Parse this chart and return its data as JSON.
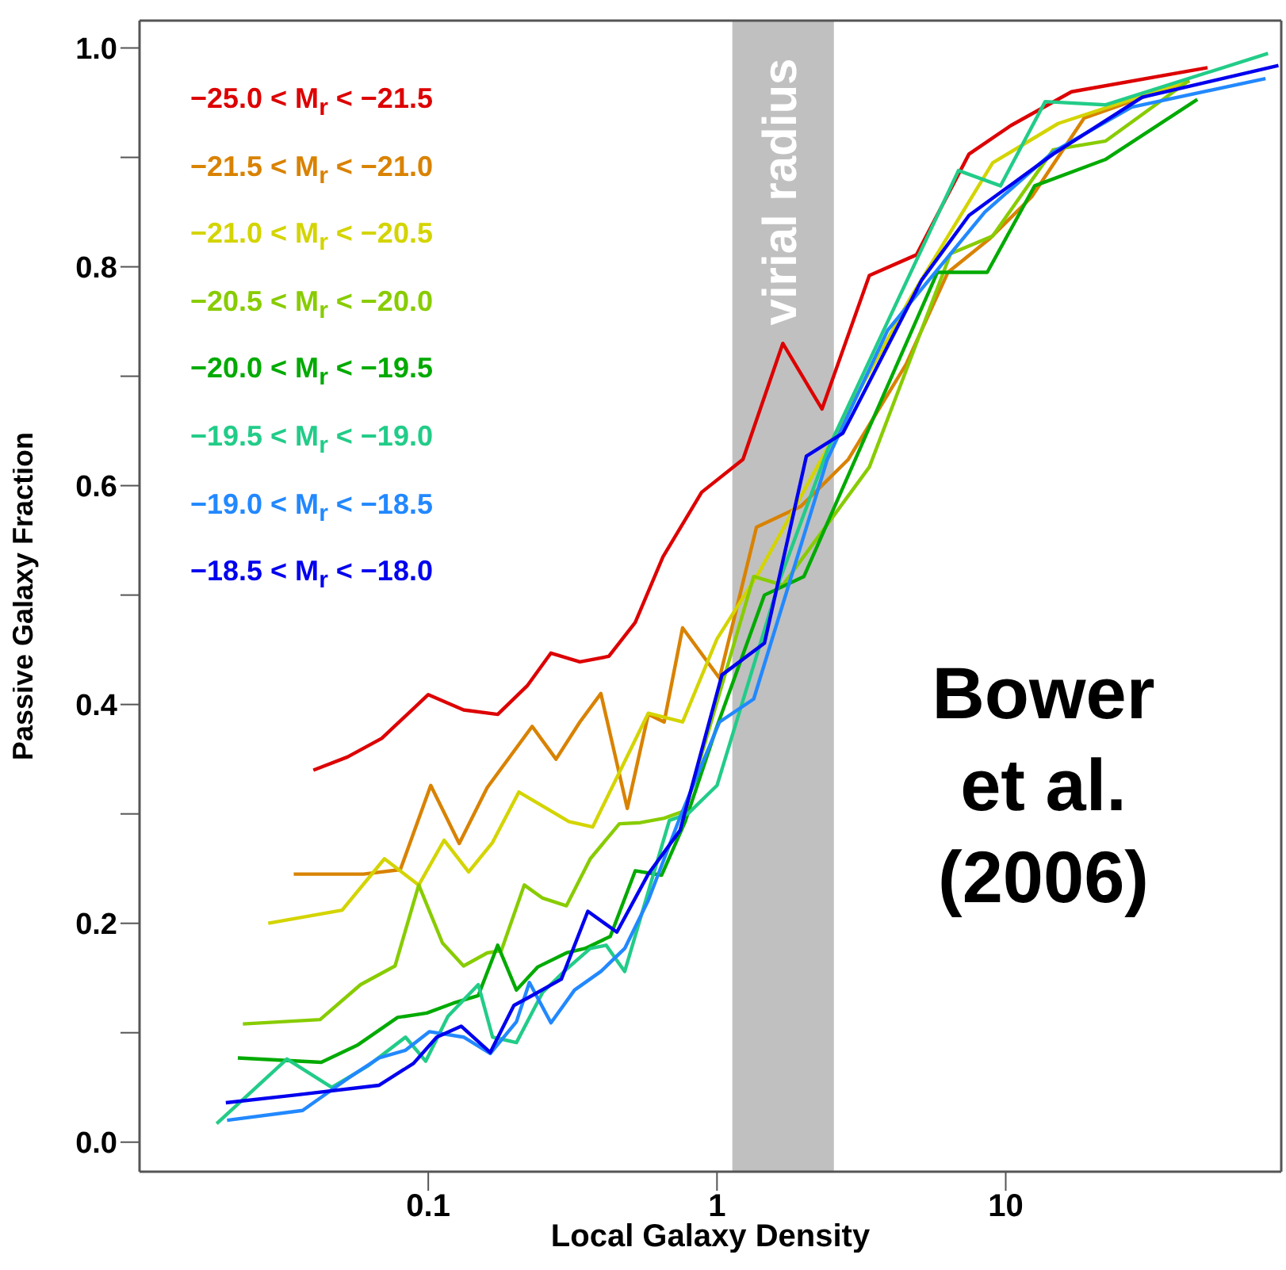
{
  "chart_data": {
    "type": "line",
    "xlabel": "Local Galaxy Density",
    "ylabel": "Passive Galaxy Fraction",
    "log": "x",
    "legend": "top left",
    "marker": "none",
    "line_style": "solid",
    "xlim": [
      0.01,
      90
    ],
    "xticks": [
      0.1,
      1,
      10
    ],
    "ylim": [
      -0.027,
      1.025
    ],
    "yticks": [
      {
        "value": 0,
        "label": "0.0"
      },
      {
        "value": 0.1,
        "label": null
      },
      {
        "value": 0.2,
        "label": "0.2"
      },
      {
        "value": 0.3,
        "label": null
      },
      {
        "value": 0.4,
        "label": "0.4"
      },
      {
        "value": 0.5,
        "label": null
      },
      {
        "value": 0.6,
        "label": "0.6"
      },
      {
        "value": 0.7,
        "label": null
      },
      {
        "value": 0.8,
        "label": "0.8"
      },
      {
        "value": 0.9,
        "label": null
      },
      {
        "value": 1,
        "label": "1.0"
      }
    ],
    "bands": [
      {
        "axis": "x",
        "from": 1.13,
        "to": 2.54,
        "label": "virial radius",
        "color": "#c0c0c0"
      }
    ],
    "annotations": [
      "Bower et al. (2006)"
    ],
    "series": [
      {
        "name": "−25.0 < M$_{r}$ < −21.5",
        "color": "#dd0000",
        "x": [
          0.04,
          0.0525,
          0.069,
          0.1,
          0.1325,
          0.174,
          0.22,
          0.266,
          0.335,
          0.422,
          0.521,
          0.65,
          0.885,
          1.23,
          1.69,
          2.31,
          3.37,
          4.91,
          7.46,
          10.4,
          16.9,
          50
        ],
        "values": [
          0.34,
          0.352,
          0.369,
          0.409,
          0.395,
          0.391,
          0.417,
          0.447,
          0.439,
          0.444,
          0.475,
          0.535,
          0.594,
          0.624,
          0.73,
          0.67,
          0.792,
          0.811,
          0.903,
          0.929,
          0.96,
          0.982
        ]
      },
      {
        "name": "−21.5 < M$_{r}$ < −21.0",
        "color": "#d98200",
        "x": [
          0.0342,
          0.0596,
          0.08,
          0.102,
          0.128,
          0.16,
          0.229,
          0.277,
          0.335,
          0.396,
          0.489,
          0.578,
          0.656,
          0.76,
          1.02,
          1.37,
          1.95,
          2.85,
          4.52,
          6.31,
          8.82,
          12.3,
          18.7,
          43.3
        ],
        "values": [
          0.245,
          0.245,
          0.249,
          0.326,
          0.273,
          0.324,
          0.38,
          0.35,
          0.384,
          0.41,
          0.305,
          0.391,
          0.384,
          0.47,
          0.424,
          0.562,
          0.581,
          0.624,
          0.711,
          0.795,
          0.826,
          0.864,
          0.936,
          0.97
        ]
      },
      {
        "name": "−21.0 < M$_{r}$ < −20.5",
        "color": "#d4d400",
        "x": [
          0.0279,
          0.0503,
          0.0705,
          0.0927,
          0.1135,
          0.138,
          0.167,
          0.206,
          0.307,
          0.371,
          0.578,
          0.76,
          1.0,
          1.4,
          4.71,
          9.01,
          15.2,
          43
        ],
        "values": [
          0.2,
          0.212,
          0.259,
          0.235,
          0.276,
          0.247,
          0.274,
          0.32,
          0.293,
          0.288,
          0.392,
          0.384,
          0.46,
          0.521,
          0.773,
          0.895,
          0.931,
          0.97
        ]
      },
      {
        "name": "−20.5 < M$_{r}$ < −20.0",
        "color": "#88cc00",
        "x": [
          0.0228,
          0.0422,
          0.0583,
          0.0767,
          0.0927,
          0.112,
          0.1325,
          0.16,
          0.179,
          0.215,
          0.249,
          0.301,
          0.364,
          0.459,
          0.543,
          0.656,
          0.776,
          1.34,
          1.69,
          3.37,
          6.44,
          9.0,
          14.6,
          22.2,
          43
        ],
        "values": [
          0.108,
          0.112,
          0.144,
          0.161,
          0.235,
          0.182,
          0.161,
          0.173,
          0.175,
          0.235,
          0.223,
          0.216,
          0.259,
          0.291,
          0.292,
          0.296,
          0.303,
          0.517,
          0.509,
          0.617,
          0.812,
          0.828,
          0.907,
          0.915,
          0.97
        ]
      },
      {
        "name": "−20.0 < M$_{r}$ < −19.5",
        "color": "#00aa00",
        "x": [
          0.0219,
          0.0426,
          0.0571,
          0.0783,
          0.0988,
          0.122,
          0.149,
          0.174,
          0.202,
          0.239,
          0.301,
          0.349,
          0.427,
          0.521,
          0.643,
          0.776,
          1.0,
          1.46,
          2.0,
          5.8,
          8.63,
          12.6,
          22.1,
          46.1
        ],
        "values": [
          0.077,
          0.073,
          0.089,
          0.114,
          0.118,
          0.127,
          0.134,
          0.18,
          0.139,
          0.16,
          0.173,
          0.177,
          0.188,
          0.248,
          0.244,
          0.293,
          0.38,
          0.5,
          0.517,
          0.795,
          0.795,
          0.874,
          0.898,
          0.953
        ]
      },
      {
        "name": "−19.5 < M$_{r}$ < −19.0",
        "color": "#22cc88",
        "x": [
          0.0185,
          0.0324,
          0.0463,
          0.0621,
          0.0834,
          0.098,
          0.117,
          0.149,
          0.167,
          0.202,
          0.249,
          0.301,
          0.364,
          0.413,
          0.479,
          0.684,
          0.792,
          1.0,
          1.65,
          2.41,
          6.86,
          9.59,
          13.7,
          22.1,
          81
        ],
        "values": [
          0.017,
          0.076,
          0.05,
          0.07,
          0.096,
          0.074,
          0.115,
          0.144,
          0.096,
          0.091,
          0.137,
          0.158,
          0.177,
          0.18,
          0.156,
          0.294,
          0.3,
          0.326,
          0.514,
          0.632,
          0.888,
          0.874,
          0.951,
          0.948,
          0.995
        ]
      },
      {
        "name": "−19.0 < M$_{r}$ < −18.5",
        "color": "#2288ff",
        "x": [
          0.0201,
          0.0367,
          0.0525,
          0.0676,
          0.0834,
          0.101,
          0.1325,
          0.164,
          0.202,
          0.224,
          0.266,
          0.321,
          0.396,
          0.479,
          0.578,
          0.745,
          1.02,
          1.34,
          2.41,
          3.9,
          8.46,
          14.6,
          27.3,
          79.4
        ],
        "values": [
          0.02,
          0.029,
          0.058,
          0.077,
          0.084,
          0.101,
          0.096,
          0.081,
          0.11,
          0.146,
          0.109,
          0.139,
          0.156,
          0.177,
          0.221,
          0.297,
          0.384,
          0.405,
          0.624,
          0.742,
          0.85,
          0.905,
          0.946,
          0.972
        ]
      },
      {
        "name": "−18.5 < M$_{r}$ < −18.0",
        "color": "#0000ee",
        "x": [
          0.0199,
          0.0345,
          0.0676,
          0.0889,
          0.107,
          0.13,
          0.164,
          0.198,
          0.229,
          0.289,
          0.357,
          0.45,
          0.578,
          0.745,
          1.04,
          1.46,
          2.04,
          2.73,
          5.12,
          7.46,
          14.6,
          29.7,
          88
        ],
        "values": [
          0.036,
          0.043,
          0.052,
          0.072,
          0.096,
          0.106,
          0.082,
          0.125,
          0.134,
          0.149,
          0.211,
          0.192,
          0.245,
          0.285,
          0.427,
          0.456,
          0.627,
          0.648,
          0.788,
          0.847,
          0.903,
          0.955,
          0.984
        ]
      }
    ]
  }
}
